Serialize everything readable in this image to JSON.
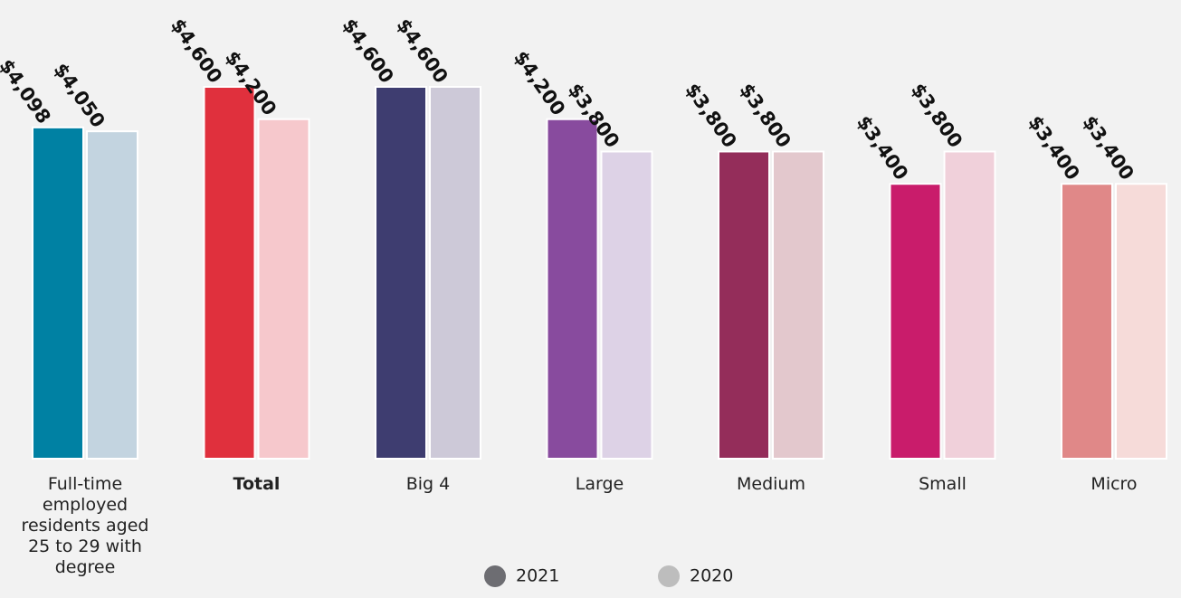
{
  "chart_data": {
    "type": "bar",
    "categories": [
      "Full-time employed residents aged 25 to 29 with degree",
      "Total",
      "Big 4",
      "Large",
      "Medium",
      "Small",
      "Micro"
    ],
    "category_label_lines": [
      [
        "Full-time",
        "employed",
        "residents aged",
        "25 to 29 with",
        "degree"
      ],
      [
        "Total"
      ],
      [
        "Big 4"
      ],
      [
        "Large"
      ],
      [
        "Medium"
      ],
      [
        "Small"
      ],
      [
        "Micro"
      ]
    ],
    "bold_category": "Total",
    "series": [
      {
        "name": "2021",
        "values": [
          4098,
          4600,
          4600,
          4200,
          3800,
          3400,
          3400
        ],
        "labels": [
          "$4,098",
          "$4,600",
          "$4,600",
          "$4,200",
          "$3,800",
          "$3,400",
          "$3,400"
        ],
        "colors": [
          "#0081a3",
          "#e0303d",
          "#3e3d70",
          "#884b9e",
          "#942d5a",
          "#c91c6b",
          "#e08888"
        ]
      },
      {
        "name": "2020",
        "values": [
          4050,
          4200,
          4600,
          3800,
          3800,
          3800,
          3400
        ],
        "labels": [
          "$4,050",
          "$4,200",
          "$4,600",
          "$3,800",
          "$3,800",
          "$3,800",
          "$3,400"
        ],
        "colors": [
          "#c3d4e0",
          "#f6c8cc",
          "#cdc9d8",
          "#ddd2e6",
          "#e3c8cd",
          "#f0d0da",
          "#f6dbd9"
        ]
      }
    ],
    "legend": {
      "position": "bottom-center",
      "items": [
        {
          "label": "2021",
          "color": "#6d6d72"
        },
        {
          "label": "2020",
          "color": "#bdbdbd"
        }
      ]
    },
    "ylim": [
      0,
      4600
    ],
    "grid": false
  }
}
